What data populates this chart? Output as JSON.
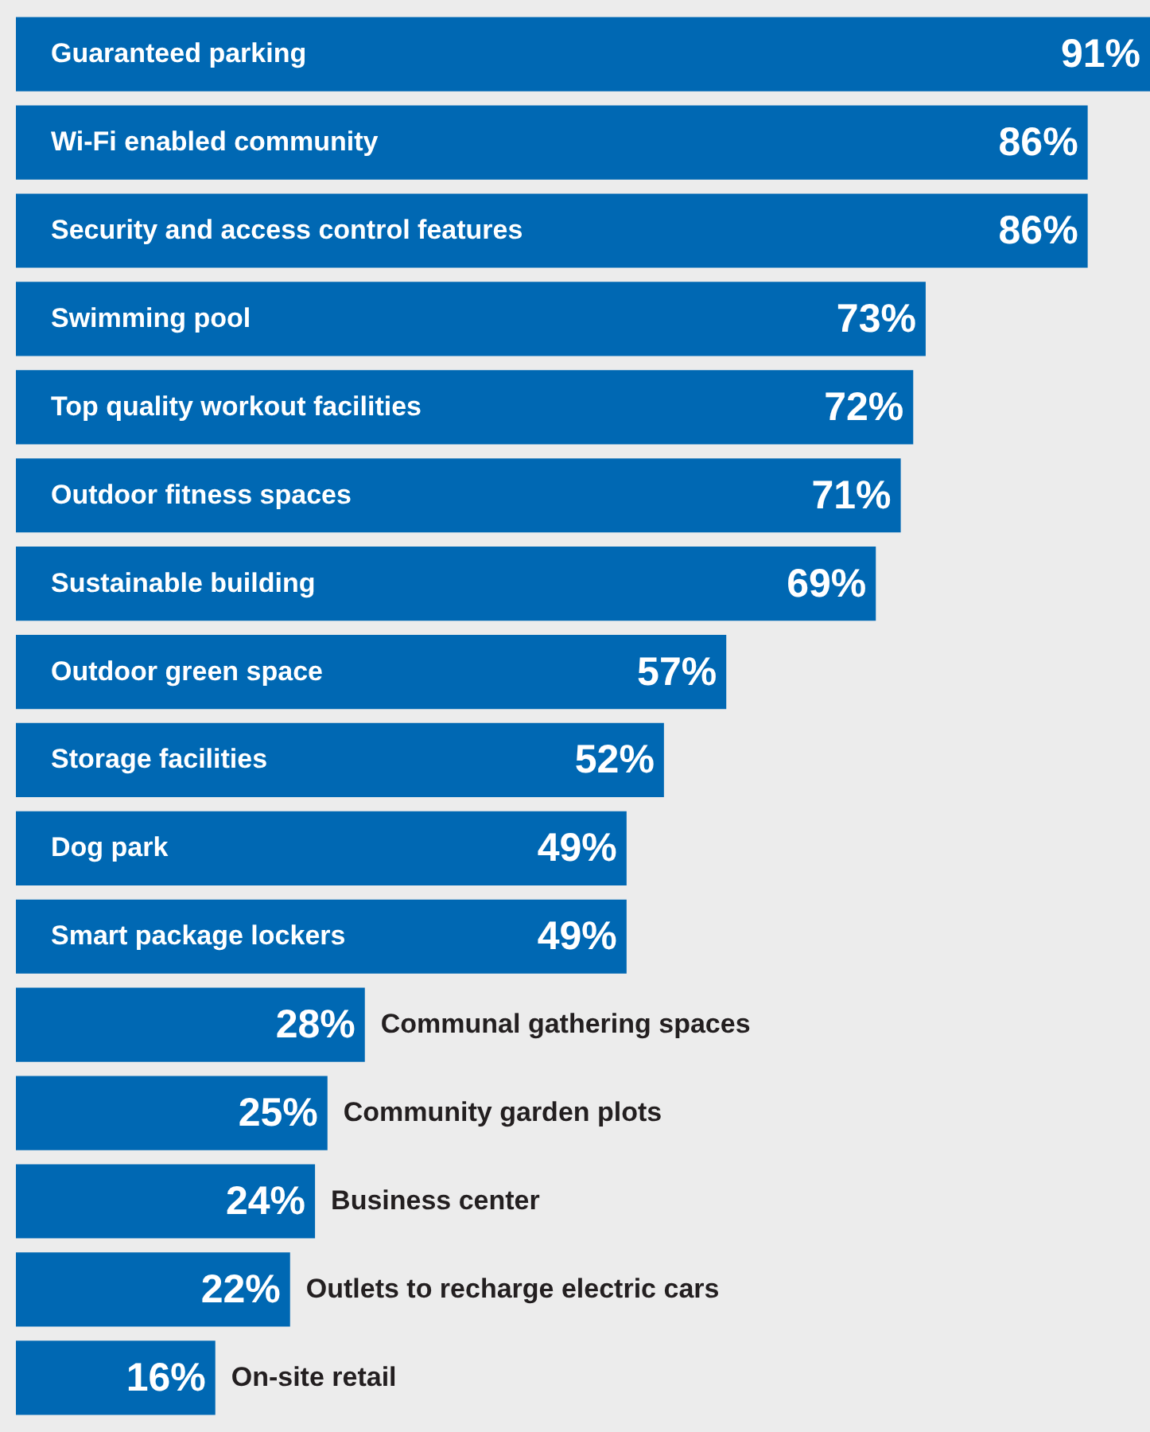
{
  "chart_data": {
    "type": "bar",
    "orientation": "horizontal",
    "color": "#0068b3",
    "value_labels": [
      "91%",
      "86%",
      "86%",
      "73%",
      "72%",
      "71%",
      "69%",
      "57%",
      "52%",
      "49%",
      "49%",
      "28%",
      "25%",
      "24%",
      "22%",
      "16%"
    ],
    "categories": [
      "Guaranteed parking",
      "Wi-Fi enabled community",
      "Security and access control features",
      "Swimming pool",
      "Top quality workout facilities",
      "Outdoor fitness spaces",
      "Sustainable building",
      "Outdoor green space",
      "Storage facilities",
      "Dog park",
      "Smart package lockers",
      "Communal gathering spaces",
      "Community garden plots",
      "Business center",
      "Outlets to recharge electric cars",
      "On-site retail"
    ],
    "values": [
      91,
      86,
      86,
      73,
      72,
      71,
      69,
      57,
      52,
      49,
      49,
      28,
      25,
      24,
      22,
      16
    ]
  }
}
